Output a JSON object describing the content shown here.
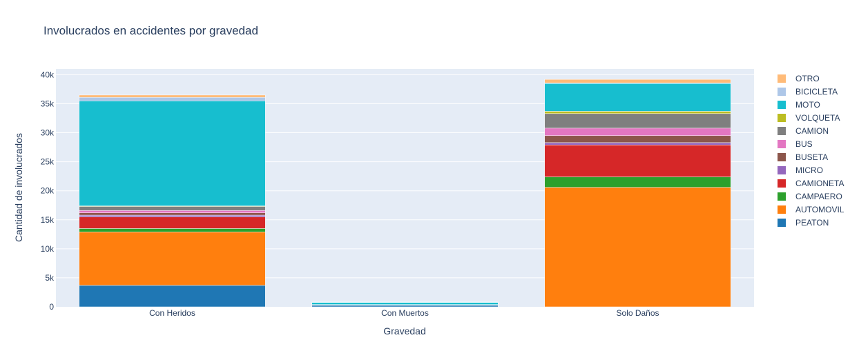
{
  "chart_data": {
    "type": "bar",
    "stacked": true,
    "title": "Involucrados en accidentes por gravedad",
    "xlabel": "Gravedad",
    "ylabel": "Cantidad de involucrados",
    "categories": [
      "Con Heridos",
      "Con Muertos",
      "Solo Daños"
    ],
    "ylim": [
      0,
      41000
    ],
    "yticks": [
      0,
      5000,
      10000,
      15000,
      20000,
      25000,
      30000,
      35000,
      40000
    ],
    "ytick_labels": [
      "0",
      "5k",
      "10k",
      "15k",
      "20k",
      "25k",
      "30k",
      "35k",
      "40k"
    ],
    "grid": true,
    "legend_position": "right",
    "series": [
      {
        "name": "PEATON",
        "color": "#1f77b4",
        "values": [
          3700,
          300,
          0
        ]
      },
      {
        "name": "AUTOMOVIL",
        "color": "#ff7f0e",
        "values": [
          9200,
          20,
          20600
        ]
      },
      {
        "name": "CAMPAERO",
        "color": "#2ca02c",
        "values": [
          600,
          10,
          1800
        ]
      },
      {
        "name": "CAMIONETA",
        "color": "#d62728",
        "values": [
          2000,
          20,
          5500
        ]
      },
      {
        "name": "MICRO",
        "color": "#9467bd",
        "values": [
          300,
          5,
          400
        ]
      },
      {
        "name": "BUSETA",
        "color": "#8c564b",
        "values": [
          400,
          10,
          1200
        ]
      },
      {
        "name": "BUS",
        "color": "#e377c2",
        "values": [
          400,
          10,
          1300
        ]
      },
      {
        "name": "CAMION",
        "color": "#7f7f7f",
        "values": [
          700,
          20,
          2500
        ]
      },
      {
        "name": "VOLQUETA",
        "color": "#bcbd22",
        "values": [
          100,
          5,
          400
        ]
      },
      {
        "name": "MOTO",
        "color": "#17becf",
        "values": [
          18100,
          400,
          4800
        ]
      },
      {
        "name": "BICICLETA",
        "color": "#aec7e8",
        "values": [
          600,
          20,
          100
        ]
      },
      {
        "name": "OTRO",
        "color": "#ffbb78",
        "values": [
          400,
          10,
          600
        ]
      }
    ]
  }
}
